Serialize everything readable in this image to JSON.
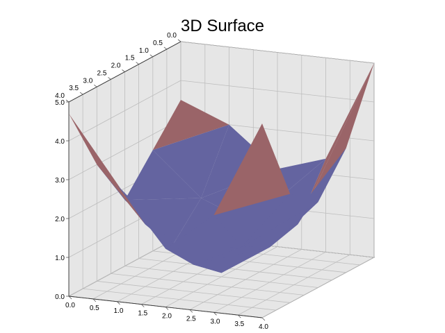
{
  "chart_data": {
    "type": "surface3d",
    "title": "3D Surface",
    "x": [
      0.0,
      1.0,
      2.0,
      3.0,
      4.0
    ],
    "y": [
      0.0,
      1.0,
      2.0,
      3.0,
      4.0
    ],
    "z": [
      [
        4.7,
        3.0,
        1.7,
        2.6,
        3.5
      ],
      [
        3.0,
        1.6,
        0.7,
        1.5,
        3.0
      ],
      [
        1.5,
        0.7,
        0.1,
        1.0,
        2.0
      ],
      [
        2.5,
        1.3,
        0.9,
        1.1,
        2.4
      ],
      [
        5.0,
        2.8,
        2.2,
        3.2,
        5.0
      ]
    ],
    "xlim": [
      0.0,
      4.0
    ],
    "ylim": [
      0.0,
      4.0
    ],
    "zlim": [
      0.0,
      5.0
    ],
    "x_ticks": [
      "0.0",
      "0.5",
      "1.0",
      "1.5",
      "2.0",
      "2.5",
      "3.0",
      "3.5",
      "4.0"
    ],
    "y_ticks": [
      "0.0",
      "0.5",
      "1.0",
      "1.5",
      "2.0",
      "2.5",
      "3.0",
      "3.5",
      "4.0"
    ],
    "z_ticks": [
      "0.0",
      "1.0",
      "2.0",
      "3.0",
      "4.0",
      "5.0"
    ],
    "colors": {
      "low": "#2c6be0",
      "mid": "#6464a0",
      "high": "#9a6468",
      "pane": "#e6e6e6"
    },
    "grid": true,
    "legend": "none"
  }
}
